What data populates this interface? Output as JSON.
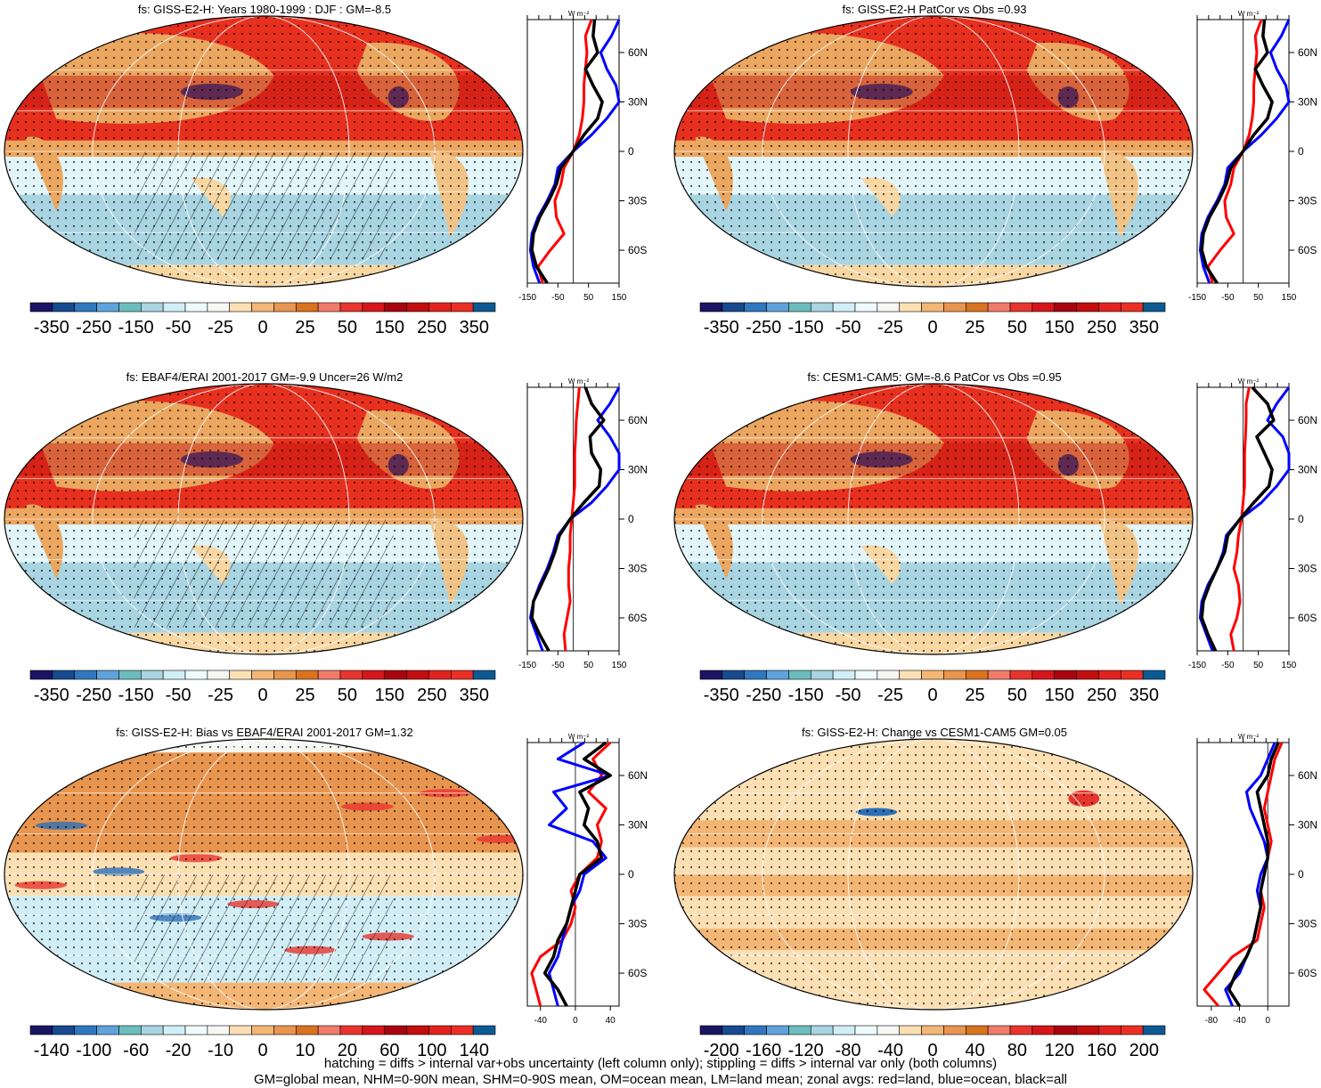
{
  "colors": {
    "map_scale_main": [
      "#1b1464",
      "#174a8f",
      "#2f78c0",
      "#5fa3dc",
      "#6cbdbd",
      "#a9d4e2",
      "#d1eef7",
      "#eefafc",
      "#f6f6f2",
      "#fce0b4",
      "#f4b675",
      "#e8954f",
      "#d9731f",
      "#f07b6a",
      "#e7352d",
      "#d7161c",
      "#a8050f",
      "#c40d0d",
      "#e1221f",
      "#ec2f24",
      "#0c5a93"
    ],
    "map_scale_bias": [
      "#1b1464",
      "#174a8f",
      "#2f78c0",
      "#5fa3dc",
      "#6cbdbd",
      "#a9d4e2",
      "#d1eef7",
      "#eefafc",
      "#f6f6f2",
      "#fce0b4",
      "#f4b675",
      "#e8954f",
      "#d9731f",
      "#f07b6a",
      "#e7352d",
      "#d7161c",
      "#a8050f",
      "#c40d0d",
      "#e1221f",
      "#ec2f24",
      "#0c5a93"
    ],
    "zonal_land": "#ff0000",
    "zonal_ocean": "#0000ff",
    "zonal_all": "#000000"
  },
  "units_label": "W m⁻²",
  "lat_labels": [
    "60N",
    "30N",
    "0",
    "30S",
    "60S"
  ],
  "captions": {
    "line1": "hatching = diffs > internal var+obs uncertainty (left column only); stippling = diffs > internal var only (both columns)",
    "line2": "GM=global mean, NHM=0-90N mean, SHM=0-90S mean, OM=ocean mean, LM=land mean; zonal avgs: red=land, blue=ocean, black=all"
  },
  "chart_data": [
    {
      "type": "heatmap",
      "title": "fs: GISS-E2-H: Years 1980-1999 : DJF : GM=-8.5",
      "colorbar_labels": [
        "-350",
        "-250",
        "-150",
        "-50",
        "-25",
        "0",
        "25",
        "50",
        "150",
        "250",
        "350"
      ],
      "zonal_xticks": [
        "-150",
        "-50",
        "50",
        "150"
      ],
      "zonal_xlim": [
        -150,
        150
      ],
      "lat": [
        80,
        70,
        60,
        50,
        40,
        30,
        20,
        10,
        0,
        -10,
        -20,
        -30,
        -40,
        -50,
        -60,
        -70,
        -80
      ],
      "series": [
        {
          "name": "land",
          "values": [
            60,
            40,
            45,
            40,
            35,
            35,
            30,
            20,
            0,
            -30,
            -40,
            -60,
            -55,
            -30,
            -75,
            -115,
            -100
          ]
        },
        {
          "name": "ocean",
          "values": [
            150,
            125,
            90,
            110,
            140,
            150,
            110,
            60,
            0,
            -50,
            -60,
            -85,
            -115,
            -135,
            -140,
            -130,
            -110
          ]
        },
        {
          "name": "all",
          "values": [
            70,
            65,
            80,
            40,
            65,
            95,
            80,
            35,
            0,
            -40,
            -55,
            -80,
            -110,
            -130,
            -135,
            -120,
            -85
          ]
        }
      ]
    },
    {
      "type": "heatmap",
      "title": "fs: GISS-E2-H PatCor vs Obs =0.93",
      "colorbar_labels": [
        "-350",
        "-250",
        "-150",
        "-50",
        "-25",
        "0",
        "25",
        "50",
        "150",
        "250",
        "350"
      ],
      "zonal_xticks": [
        "-150",
        "-50",
        "50",
        "150"
      ],
      "zonal_xlim": [
        -150,
        150
      ],
      "lat": [
        80,
        70,
        60,
        50,
        40,
        30,
        20,
        10,
        0,
        -10,
        -20,
        -30,
        -40,
        -50,
        -60,
        -70,
        -80
      ],
      "series": [
        {
          "name": "land",
          "values": [
            60,
            40,
            45,
            40,
            35,
            35,
            30,
            20,
            0,
            -30,
            -40,
            -60,
            -55,
            -30,
            -75,
            -115,
            -100
          ]
        },
        {
          "name": "ocean",
          "values": [
            150,
            125,
            90,
            110,
            140,
            150,
            110,
            60,
            0,
            -50,
            -60,
            -85,
            -115,
            -135,
            -140,
            -130,
            -110
          ]
        },
        {
          "name": "all",
          "values": [
            70,
            65,
            80,
            40,
            65,
            95,
            80,
            35,
            0,
            -40,
            -55,
            -80,
            -110,
            -130,
            -135,
            -120,
            -85
          ]
        }
      ]
    },
    {
      "type": "heatmap",
      "title": "fs: EBAF4/ERAI 2001-2017 GM=-9.9 Uncer=26 W/m2",
      "colorbar_labels": [
        "-350",
        "-250",
        "-150",
        "-50",
        "-25",
        "0",
        "25",
        "50",
        "150",
        "250",
        "350"
      ],
      "zonal_xticks": [
        "-150",
        "-50",
        "50",
        "150"
      ],
      "zonal_xlim": [
        -150,
        150
      ],
      "lat": [
        80,
        70,
        60,
        50,
        40,
        30,
        20,
        10,
        0,
        -10,
        -20,
        -30,
        -40,
        -50,
        -60,
        -70,
        -80
      ],
      "series": [
        {
          "name": "land",
          "values": [
            20,
            15,
            10,
            8,
            5,
            5,
            5,
            0,
            -5,
            -10,
            -10,
            -15,
            -15,
            -10,
            -20,
            -30,
            -25
          ]
        },
        {
          "name": "ocean",
          "values": [
            150,
            120,
            80,
            120,
            150,
            150,
            110,
            60,
            -10,
            -50,
            -65,
            -85,
            -110,
            -130,
            -140,
            -120,
            -100
          ]
        },
        {
          "name": "all",
          "values": [
            40,
            60,
            100,
            55,
            60,
            90,
            85,
            35,
            -10,
            -45,
            -60,
            -80,
            -105,
            -130,
            -135,
            -110,
            -80
          ]
        }
      ]
    },
    {
      "type": "heatmap",
      "title": "fs: CESM1-CAM5: GM=-8.6 PatCor vs Obs =0.95",
      "colorbar_labels": [
        "-350",
        "-250",
        "-150",
        "-50",
        "-25",
        "0",
        "25",
        "50",
        "150",
        "250",
        "350"
      ],
      "zonal_xticks": [
        "-150",
        "-50",
        "50",
        "150"
      ],
      "zonal_xlim": [
        -150,
        150
      ],
      "lat": [
        80,
        70,
        60,
        50,
        40,
        30,
        20,
        10,
        0,
        -10,
        -20,
        -30,
        -40,
        -50,
        -60,
        -70,
        -80
      ],
      "series": [
        {
          "name": "land",
          "values": [
            20,
            10,
            10,
            8,
            5,
            5,
            5,
            0,
            -5,
            -15,
            -20,
            -30,
            -15,
            -10,
            -20,
            -40,
            -30
          ]
        },
        {
          "name": "ocean",
          "values": [
            150,
            110,
            80,
            130,
            150,
            150,
            110,
            60,
            -10,
            -55,
            -65,
            -85,
            -115,
            -135,
            -140,
            -120,
            -100
          ]
        },
        {
          "name": "all",
          "values": [
            30,
            80,
            100,
            45,
            70,
            95,
            85,
            35,
            -10,
            -50,
            -60,
            -85,
            -110,
            -130,
            -135,
            -115,
            -90
          ]
        }
      ]
    },
    {
      "type": "heatmap",
      "title": "fs: GISS-E2-H: Bias vs EBAF4/ERAI 2001-2017 GM=1.32",
      "colorbar_labels": [
        "-140",
        "-100",
        "-60",
        "-20",
        "-10",
        "0",
        "10",
        "20",
        "60",
        "100",
        "140"
      ],
      "zonal_xticks": [
        "-40",
        "0",
        "40"
      ],
      "zonal_xlim": [
        -55,
        50
      ],
      "lat": [
        80,
        70,
        60,
        50,
        40,
        30,
        20,
        10,
        0,
        -10,
        -20,
        -30,
        -40,
        -50,
        -60,
        -70,
        -80
      ],
      "series": [
        {
          "name": "land",
          "values": [
            40,
            20,
            30,
            15,
            35,
            25,
            30,
            25,
            5,
            -5,
            0,
            -5,
            -15,
            -40,
            -50,
            -45,
            -40
          ]
        },
        {
          "name": "ocean",
          "values": [
            10,
            -20,
            40,
            -25,
            -10,
            -30,
            20,
            35,
            10,
            5,
            -5,
            -10,
            -15,
            -20,
            -30,
            -25,
            -20
          ]
        },
        {
          "name": "all",
          "values": [
            35,
            10,
            40,
            5,
            15,
            10,
            25,
            30,
            5,
            0,
            -5,
            -10,
            -20,
            -25,
            -35,
            -20,
            -10
          ]
        }
      ]
    },
    {
      "type": "heatmap",
      "title": "fs: GISS-E2-H: Change vs CESM1-CAM5 GM=0.05",
      "colorbar_labels": [
        "-200",
        "-160",
        "-120",
        "-80",
        "-40",
        "0",
        "40",
        "80",
        "120",
        "160",
        "200"
      ],
      "zonal_xticks": [
        "-80",
        "-40",
        "0"
      ],
      "zonal_xlim": [
        -100,
        30
      ],
      "lat": [
        80,
        70,
        60,
        50,
        40,
        30,
        20,
        10,
        0,
        -10,
        -20,
        -30,
        -40,
        -50,
        -60,
        -70,
        -80
      ],
      "series": [
        {
          "name": "land",
          "values": [
            20,
            10,
            5,
            0,
            -5,
            0,
            5,
            0,
            -5,
            -10,
            -5,
            -10,
            -15,
            -50,
            -70,
            -90,
            -70
          ]
        },
        {
          "name": "ocean",
          "values": [
            10,
            0,
            -10,
            -30,
            -25,
            -15,
            -5,
            0,
            -10,
            -15,
            -10,
            -15,
            -20,
            -30,
            -40,
            -60,
            -50
          ]
        },
        {
          "name": "all",
          "values": [
            15,
            5,
            0,
            -15,
            -10,
            -5,
            0,
            0,
            -5,
            -10,
            -10,
            -15,
            -20,
            -30,
            -45,
            -55,
            -40
          ]
        }
      ]
    }
  ]
}
